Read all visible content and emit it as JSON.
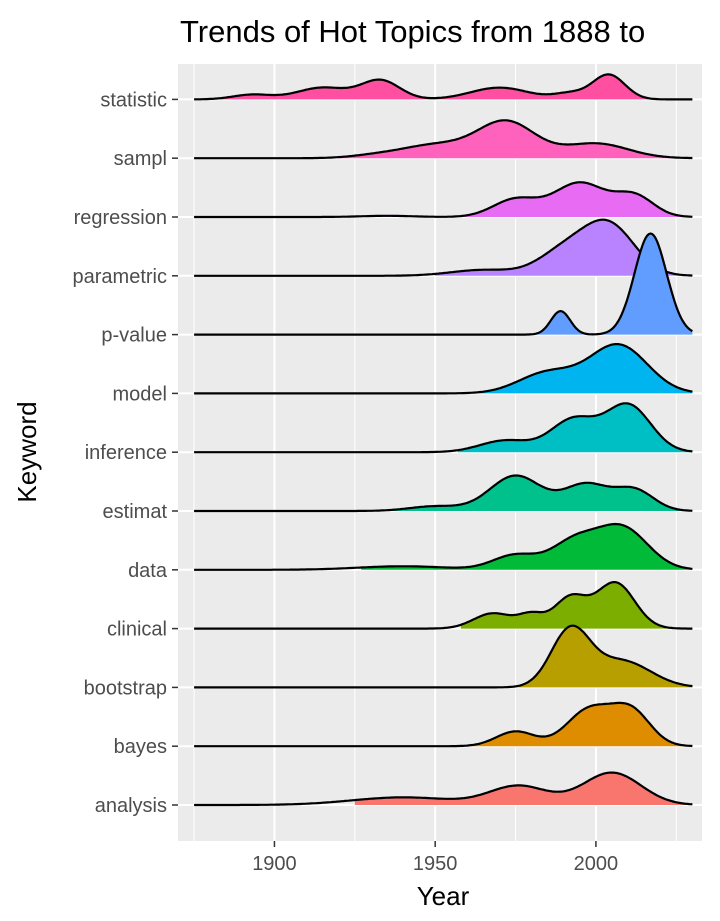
{
  "chart_data": {
    "type": "ridgeline",
    "title": "Trends of Hot Topics from 1888 to",
    "xlabel": "Year",
    "ylabel": "Keyword",
    "xlim": [
      1870,
      2033
    ],
    "x_ticks": [
      1900,
      1950,
      2000
    ],
    "x_tick_labels": [
      "1900",
      "1950",
      "2000"
    ],
    "grid": true,
    "legend": "none",
    "series": [
      {
        "name": "analysis",
        "color": "#F8766D",
        "shade_from": 1925,
        "peaks": [
          [
            2005,
            0.55,
            9
          ],
          [
            1976,
            0.32,
            9
          ],
          [
            1940,
            0.13,
            16
          ]
        ]
      },
      {
        "name": "bayes",
        "color": "#DE8C00",
        "shade_from": 1958,
        "peaks": [
          [
            1998,
            0.62,
            7
          ],
          [
            2011,
            0.58,
            6
          ],
          [
            1975,
            0.25,
            6
          ]
        ]
      },
      {
        "name": "bootstrap",
        "color": "#B79F00",
        "shade_from": 1975,
        "peaks": [
          [
            1992,
            0.95,
            6
          ],
          [
            2008,
            0.45,
            9
          ]
        ]
      },
      {
        "name": "clinical",
        "color": "#7CAE00",
        "shade_from": 1958,
        "peaks": [
          [
            2006,
            0.78,
            6
          ],
          [
            1992,
            0.52,
            5
          ],
          [
            1968,
            0.26,
            6
          ],
          [
            1980,
            0.22,
            4
          ]
        ]
      },
      {
        "name": "data",
        "color": "#00BA38",
        "shade_from": 1927,
        "peaks": [
          [
            2008,
            0.72,
            8
          ],
          [
            1993,
            0.45,
            7
          ],
          [
            1975,
            0.25,
            7
          ],
          [
            1940,
            0.06,
            14
          ]
        ]
      },
      {
        "name": "estimat",
        "color": "#00C08B",
        "shade_from": 1930,
        "peaks": [
          [
            1975,
            0.6,
            8
          ],
          [
            1997,
            0.45,
            7
          ],
          [
            2012,
            0.35,
            6
          ],
          [
            1950,
            0.08,
            8
          ]
        ]
      },
      {
        "name": "inference",
        "color": "#00BFC4",
        "shade_from": 1957,
        "peaks": [
          [
            2010,
            0.8,
            7
          ],
          [
            1993,
            0.55,
            7
          ],
          [
            1972,
            0.2,
            8
          ]
        ]
      },
      {
        "name": "model",
        "color": "#00B4F0",
        "shade_from": 1955,
        "peaks": [
          [
            2007,
            0.82,
            9
          ],
          [
            1985,
            0.35,
            9
          ]
        ]
      },
      {
        "name": "p-value",
        "color": "#619CFF",
        "shade_from": 1980,
        "peaks": [
          [
            2017,
            1.72,
            5
          ],
          [
            1989,
            0.4,
            3
          ]
        ]
      },
      {
        "name": "parametric",
        "color": "#B983FF",
        "shade_from": 1950,
        "peaks": [
          [
            2004,
            0.85,
            8
          ],
          [
            1990,
            0.4,
            8
          ],
          [
            1965,
            0.1,
            10
          ]
        ]
      },
      {
        "name": "regression",
        "color": "#E76BF3",
        "shade_from": 1925,
        "peaks": [
          [
            1995,
            0.58,
            8
          ],
          [
            2012,
            0.35,
            6
          ],
          [
            1975,
            0.3,
            7
          ],
          [
            1935,
            0.02,
            8
          ]
        ]
      },
      {
        "name": "sampl",
        "color": "#FF62BC",
        "shade_from": 1920,
        "peaks": [
          [
            1972,
            0.62,
            9
          ],
          [
            1950,
            0.22,
            10
          ],
          [
            2000,
            0.25,
            10
          ],
          [
            1932,
            0.05,
            8
          ]
        ]
      },
      {
        "name": "statistic",
        "color": "#FF4FA0",
        "shade_from": 1875,
        "peaks": [
          [
            2004,
            0.42,
            5
          ],
          [
            1933,
            0.32,
            6
          ],
          [
            1915,
            0.2,
            8
          ],
          [
            1893,
            0.08,
            6
          ],
          [
            1970,
            0.2,
            9
          ],
          [
            1992,
            0.1,
            5
          ]
        ]
      }
    ]
  }
}
